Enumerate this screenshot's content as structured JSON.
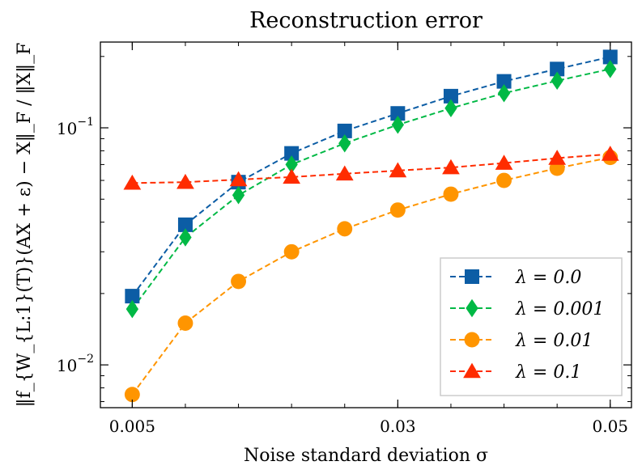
{
  "chart_data": {
    "type": "line",
    "title": "Reconstruction error",
    "xlabel": "Noise standard deviation σ",
    "ylabel": "‖f_{W_{L:1}(T)}(AX + ε) − X‖_F / ‖X‖_F",
    "xscale": "linear",
    "yscale": "log",
    "xlim": [
      0.002,
      0.052
    ],
    "ylim": [
      0.0066,
      0.23
    ],
    "xticks": [
      {
        "value": 0.005,
        "label": "0.005"
      },
      {
        "value": 0.03,
        "label": "0.03"
      },
      {
        "value": 0.05,
        "label": "0.05"
      }
    ],
    "yticks": [
      {
        "value": 0.01,
        "base": "10",
        "exp": "−2"
      },
      {
        "value": 0.1,
        "base": "10",
        "exp": "−1"
      }
    ],
    "x": [
      0.005,
      0.01,
      0.015,
      0.02,
      0.025,
      0.03,
      0.035,
      0.04,
      0.045,
      0.05
    ],
    "series": [
      {
        "name": "λ = 0.0",
        "color": "#0C5DA5",
        "marker": "square",
        "values": [
          0.0195,
          0.039,
          0.059,
          0.078,
          0.097,
          0.115,
          0.136,
          0.157,
          0.177,
          0.199
        ]
      },
      {
        "name": "λ = 0.001",
        "color": "#00B945",
        "marker": "diamond",
        "values": [
          0.0172,
          0.0345,
          0.052,
          0.07,
          0.086,
          0.103,
          0.121,
          0.14,
          0.158,
          0.177
        ]
      },
      {
        "name": "λ = 0.01",
        "color": "#FF9500",
        "marker": "circle",
        "values": [
          0.0075,
          0.015,
          0.0225,
          0.03,
          0.0375,
          0.045,
          0.0525,
          0.06,
          0.0675,
          0.075
        ]
      },
      {
        "name": "λ = 0.1",
        "color": "#FF2C00",
        "marker": "triangle",
        "values": [
          0.0585,
          0.059,
          0.0605,
          0.062,
          0.064,
          0.066,
          0.068,
          0.071,
          0.0745,
          0.0775
        ]
      }
    ],
    "legend": "lower right"
  }
}
